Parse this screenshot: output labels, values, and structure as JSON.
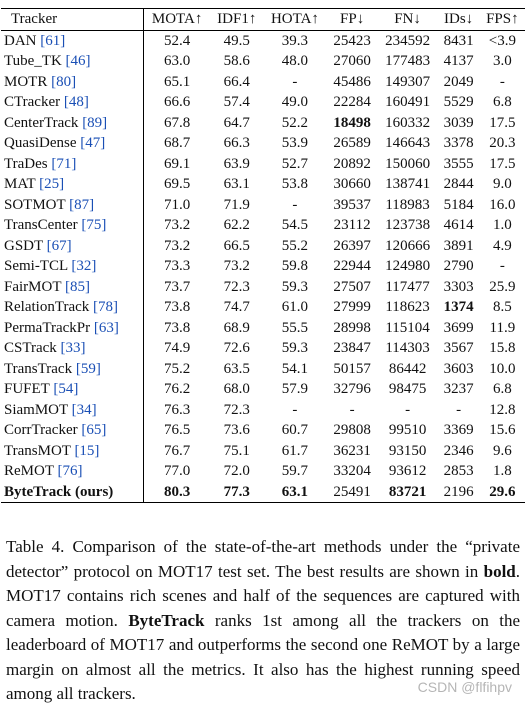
{
  "table": {
    "headers": [
      "Tracker",
      "MOTA↑",
      "IDF1↑",
      "HOTA↑",
      "FP↓",
      "FN↓",
      "IDs↓",
      "FPS↑"
    ],
    "rows": [
      {
        "name": "DAN",
        "ref": "[61]",
        "cells": [
          "52.4",
          "49.5",
          "39.3",
          "25423",
          "234592",
          "8431",
          "<3.9"
        ],
        "bold": []
      },
      {
        "name": "Tube_TK",
        "ref": "[46]",
        "cells": [
          "63.0",
          "58.6",
          "48.0",
          "27060",
          "177483",
          "4137",
          "3.0"
        ],
        "bold": []
      },
      {
        "name": "MOTR",
        "ref": "[80]",
        "cells": [
          "65.1",
          "66.4",
          "-",
          "45486",
          "149307",
          "2049",
          "-"
        ],
        "bold": []
      },
      {
        "name": "CTracker",
        "ref": "[48]",
        "cells": [
          "66.6",
          "57.4",
          "49.0",
          "22284",
          "160491",
          "5529",
          "6.8"
        ],
        "bold": []
      },
      {
        "name": "CenterTrack",
        "ref": "[89]",
        "cells": [
          "67.8",
          "64.7",
          "52.2",
          "18498",
          "160332",
          "3039",
          "17.5"
        ],
        "bold": [
          3
        ]
      },
      {
        "name": "QuasiDense",
        "ref": "[47]",
        "cells": [
          "68.7",
          "66.3",
          "53.9",
          "26589",
          "146643",
          "3378",
          "20.3"
        ],
        "bold": []
      },
      {
        "name": "TraDes",
        "ref": "[71]",
        "cells": [
          "69.1",
          "63.9",
          "52.7",
          "20892",
          "150060",
          "3555",
          "17.5"
        ],
        "bold": []
      },
      {
        "name": "MAT",
        "ref": "[25]",
        "cells": [
          "69.5",
          "63.1",
          "53.8",
          "30660",
          "138741",
          "2844",
          "9.0"
        ],
        "bold": []
      },
      {
        "name": "SOTMOT",
        "ref": "[87]",
        "cells": [
          "71.0",
          "71.9",
          "-",
          "39537",
          "118983",
          "5184",
          "16.0"
        ],
        "bold": []
      },
      {
        "name": "TransCenter",
        "ref": "[75]",
        "cells": [
          "73.2",
          "62.2",
          "54.5",
          "23112",
          "123738",
          "4614",
          "1.0"
        ],
        "bold": []
      },
      {
        "name": "GSDT",
        "ref": "[67]",
        "cells": [
          "73.2",
          "66.5",
          "55.2",
          "26397",
          "120666",
          "3891",
          "4.9"
        ],
        "bold": []
      },
      {
        "name": "Semi-TCL",
        "ref": "[32]",
        "cells": [
          "73.3",
          "73.2",
          "59.8",
          "22944",
          "124980",
          "2790",
          "-"
        ],
        "bold": []
      },
      {
        "name": "FairMOT",
        "ref": "[85]",
        "cells": [
          "73.7",
          "72.3",
          "59.3",
          "27507",
          "117477",
          "3303",
          "25.9"
        ],
        "bold": []
      },
      {
        "name": "RelationTrack",
        "ref": "[78]",
        "cells": [
          "73.8",
          "74.7",
          "61.0",
          "27999",
          "118623",
          "1374",
          "8.5"
        ],
        "bold": [
          5
        ]
      },
      {
        "name": "PermaTrackPr",
        "ref": "[63]",
        "cells": [
          "73.8",
          "68.9",
          "55.5",
          "28998",
          "115104",
          "3699",
          "11.9"
        ],
        "bold": []
      },
      {
        "name": "CSTrack",
        "ref": "[33]",
        "cells": [
          "74.9",
          "72.6",
          "59.3",
          "23847",
          "114303",
          "3567",
          "15.8"
        ],
        "bold": []
      },
      {
        "name": "TransTrack",
        "ref": "[59]",
        "cells": [
          "75.2",
          "63.5",
          "54.1",
          "50157",
          "86442",
          "3603",
          "10.0"
        ],
        "bold": []
      },
      {
        "name": "FUFET",
        "ref": "[54]",
        "cells": [
          "76.2",
          "68.0",
          "57.9",
          "32796",
          "98475",
          "3237",
          "6.8"
        ],
        "bold": []
      },
      {
        "name": "SiamMOT",
        "ref": "[34]",
        "cells": [
          "76.3",
          "72.3",
          "-",
          "-",
          "-",
          "-",
          "12.8"
        ],
        "bold": []
      },
      {
        "name": "CorrTracker",
        "ref": "[65]",
        "cells": [
          "76.5",
          "73.6",
          "60.7",
          "29808",
          "99510",
          "3369",
          "15.6"
        ],
        "bold": []
      },
      {
        "name": "TransMOT",
        "ref": "[15]",
        "cells": [
          "76.7",
          "75.1",
          "61.7",
          "36231",
          "93150",
          "2346",
          "9.6"
        ],
        "bold": []
      },
      {
        "name": "ReMOT",
        "ref": "[76]",
        "cells": [
          "77.0",
          "72.0",
          "59.7",
          "33204",
          "93612",
          "2853",
          "1.8"
        ],
        "bold": []
      },
      {
        "name": "ByteTrack (ours)",
        "ref": "",
        "cells": [
          "80.3",
          "77.3",
          "63.1",
          "25491",
          "83721",
          "2196",
          "29.6"
        ],
        "bold": [
          0,
          1,
          2,
          4,
          6
        ],
        "name_bold": true
      }
    ]
  },
  "caption": {
    "p1": "Table 4.  Comparison of the state-of-the-art methods under the “private detector” protocol on MOT17 test set.  The best results are shown in ",
    "bold1": "bold",
    "p2": ".  MOT17 contains rich scenes and half of the sequences are captured with camera motion.  ",
    "bold2": "ByteTrack",
    "p3": " ranks 1st among all the trackers on the leaderboard of MOT17 and outperforms the second one ReMOT by a large margin on almost all the metrics. It also has the highest running speed among all trackers."
  },
  "watermark": "CSDN @flfihpv"
}
